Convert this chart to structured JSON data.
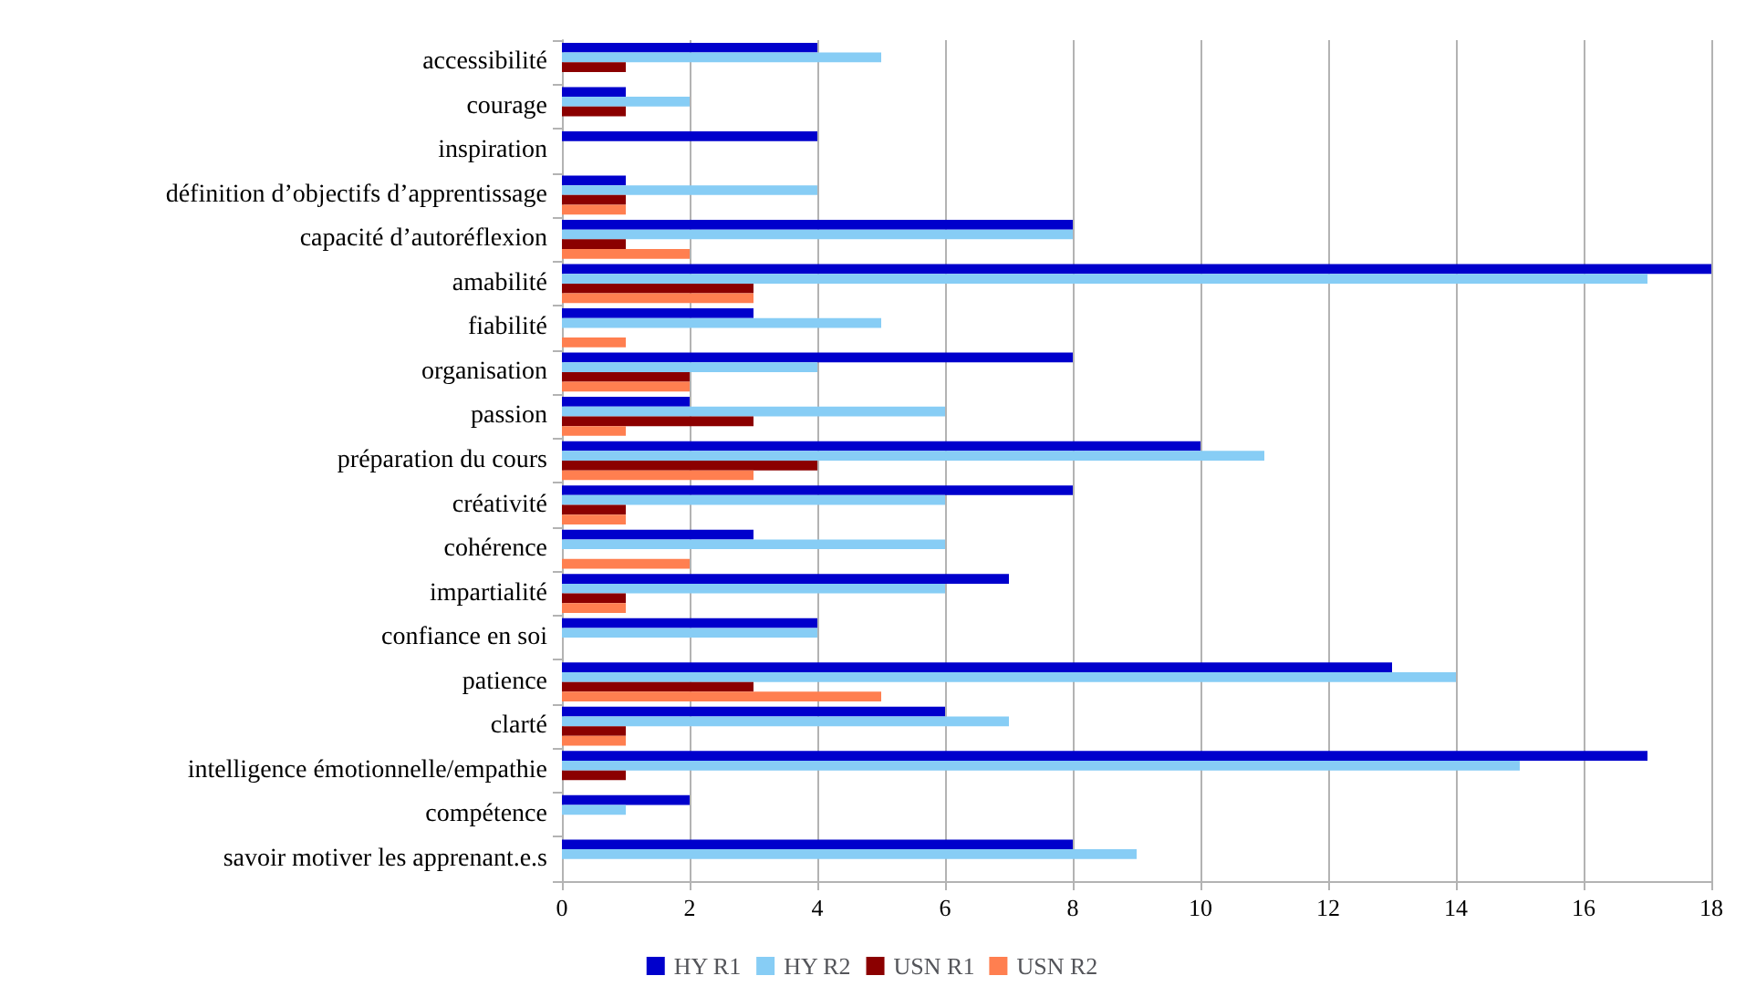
{
  "chart_data": {
    "type": "bar",
    "orientation": "horizontal",
    "categories": [
      "accessibilité",
      "courage",
      "inspiration",
      "définition d’objectifs d’apprentissage",
      "capacité d’autoréflexion",
      "amabilité",
      "fiabilité",
      "organisation",
      "passion",
      "préparation du cours",
      "créativité",
      "cohérence",
      "impartialité",
      "confiance en soi",
      "patience",
      "clarté",
      "intelligence émotionnelle/empathie",
      "compétence",
      "savoir motiver les apprenant.e.s"
    ],
    "series": [
      {
        "name": "HY R1",
        "color": "#0000cc",
        "values": [
          4,
          1,
          4,
          1,
          8,
          18,
          3,
          8,
          2,
          10,
          8,
          3,
          7,
          4,
          13,
          6,
          17,
          2,
          8
        ]
      },
      {
        "name": "HY R2",
        "color": "#87cdf5",
        "values": [
          5,
          2,
          0,
          4,
          8,
          17,
          5,
          4,
          6,
          11,
          6,
          6,
          6,
          4,
          14,
          7,
          15,
          1,
          9
        ]
      },
      {
        "name": "USN R1",
        "color": "#8b0000",
        "values": [
          1,
          1,
          0,
          1,
          1,
          3,
          0,
          2,
          3,
          4,
          1,
          0,
          1,
          0,
          3,
          1,
          1,
          0,
          0
        ]
      },
      {
        "name": "USN R2",
        "color": "#ff7f50",
        "values": [
          0,
          0,
          0,
          1,
          2,
          3,
          1,
          2,
          1,
          3,
          1,
          2,
          1,
          0,
          5,
          1,
          0,
          0,
          0
        ]
      }
    ],
    "xlim": [
      0,
      18
    ],
    "xticks": [
      0,
      2,
      4,
      6,
      8,
      10,
      12,
      14,
      16,
      18
    ],
    "grid": "x",
    "legend": "bottom"
  }
}
